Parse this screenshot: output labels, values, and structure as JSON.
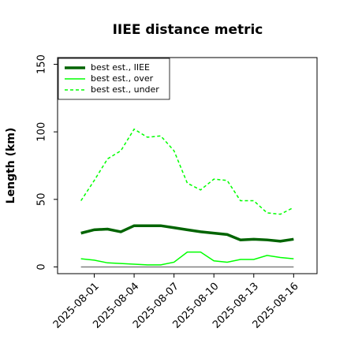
{
  "chart_data": {
    "type": "line",
    "title": "IIEE distance metric",
    "ylabel": "Length (km)",
    "x": [
      "2025-07-31",
      "2025-08-01",
      "2025-08-02",
      "2025-08-03",
      "2025-08-04",
      "2025-08-05",
      "2025-08-06",
      "2025-08-07",
      "2025-08-08",
      "2025-08-09",
      "2025-08-10",
      "2025-08-11",
      "2025-08-12",
      "2025-08-13",
      "2025-08-14",
      "2025-08-15",
      "2025-08-16"
    ],
    "xticks": [
      "2025-08-01",
      "2025-08-04",
      "2025-08-07",
      "2025-08-10",
      "2025-08-13",
      "2025-08-16"
    ],
    "ylim": [
      -5,
      155
    ],
    "yticks": [
      0,
      50,
      100,
      150
    ],
    "reference_line": 0,
    "reference_color": "#808080",
    "legend": "upper left",
    "series": [
      {
        "name": "best est., IIEE",
        "color": "#006400",
        "style": "solid",
        "width": 3.5,
        "values": [
          25,
          27.5,
          28,
          26,
          30.5,
          30.5,
          30.5,
          29,
          27.5,
          26,
          25,
          24,
          20,
          20.5,
          20,
          19,
          20.5
        ]
      },
      {
        "name": "best est., over",
        "color": "#00ff00",
        "style": "solid",
        "width": 1.5,
        "values": [
          6,
          5,
          3,
          2.5,
          2,
          1.5,
          1.5,
          3.5,
          11,
          11,
          4.5,
          3.5,
          5.5,
          5.5,
          8.5,
          7,
          6
        ]
      },
      {
        "name": "best est., under",
        "color": "#00ff00",
        "style": "dashed",
        "width": 1.5,
        "values": [
          49,
          64,
          80,
          86,
          102,
          96,
          97,
          86,
          62,
          57,
          65,
          64,
          49,
          49,
          40,
          39,
          44
        ]
      }
    ]
  }
}
